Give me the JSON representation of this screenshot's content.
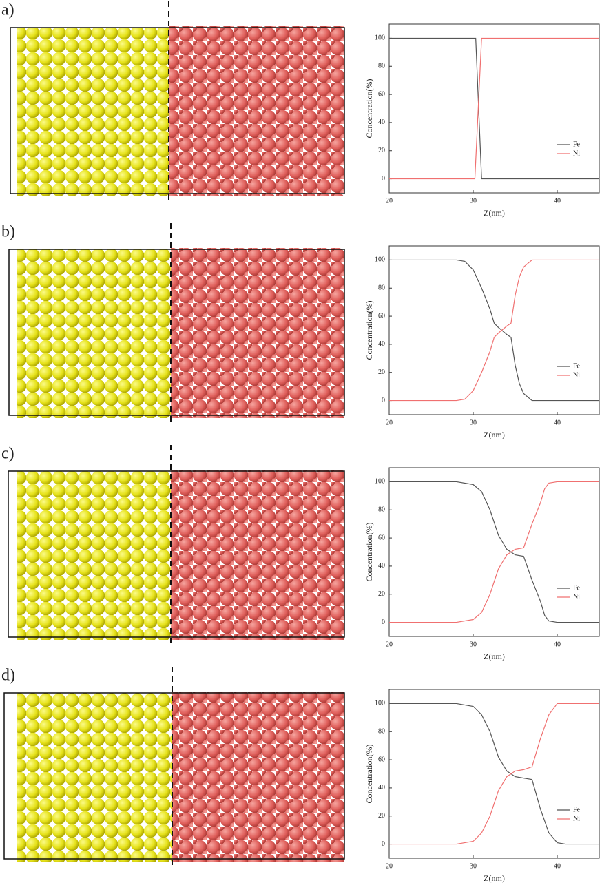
{
  "chart_data": [
    {
      "type": "line",
      "panel_label": "a)",
      "xlabel": "Z(nm)",
      "ylabel": "Concentration(%)",
      "xlim": [
        20,
        45
      ],
      "ylim": [
        -10,
        110
      ],
      "xticks": [
        20,
        30,
        40
      ],
      "yticks": [
        0,
        20,
        40,
        60,
        80,
        100
      ],
      "legend": "lower right",
      "series": [
        {
          "name": "Fe",
          "color": "#555555",
          "x": [
            20,
            30.3,
            31,
            45
          ],
          "values": [
            100,
            100,
            0,
            0
          ]
        },
        {
          "name": "Ni",
          "color": "#f07070",
          "x": [
            20,
            30.2,
            31,
            45
          ],
          "values": [
            0,
            0,
            100,
            100
          ]
        }
      ]
    },
    {
      "type": "line",
      "panel_label": "b)",
      "xlabel": "Z(nm)",
      "ylabel": "Concentration(%)",
      "xlim": [
        20,
        45
      ],
      "ylim": [
        -10,
        110
      ],
      "xticks": [
        20,
        30,
        40
      ],
      "yticks": [
        0,
        20,
        40,
        60,
        80,
        100
      ],
      "legend": "lower right",
      "series": [
        {
          "name": "Fe",
          "color": "#555555",
          "x": [
            20,
            28,
            29,
            30,
            31,
            32,
            32.5,
            33,
            34,
            34.5,
            35,
            35.5,
            36,
            37,
            45
          ],
          "values": [
            100,
            100,
            99,
            93,
            80,
            65,
            55,
            52,
            47,
            45,
            25,
            12,
            5,
            0,
            0
          ]
        },
        {
          "name": "Ni",
          "color": "#f07070",
          "x": [
            20,
            28,
            29,
            30,
            31,
            32,
            32.5,
            33,
            34,
            34.5,
            35,
            35.5,
            36,
            37,
            45
          ],
          "values": [
            0,
            0,
            1,
            7,
            20,
            35,
            45,
            48,
            53,
            55,
            75,
            88,
            95,
            100,
            100
          ]
        }
      ]
    },
    {
      "type": "line",
      "panel_label": "c)",
      "xlabel": "Z(nm)",
      "ylabel": "Concentration(%)",
      "xlim": [
        20,
        45
      ],
      "ylim": [
        -10,
        110
      ],
      "xticks": [
        20,
        30,
        40
      ],
      "yticks": [
        0,
        20,
        40,
        60,
        80,
        100
      ],
      "legend": "lower right",
      "series": [
        {
          "name": "Fe",
          "color": "#555555",
          "x": [
            20,
            28,
            30,
            31,
            32,
            33,
            34,
            35,
            36,
            37,
            38,
            38.5,
            39,
            40,
            45
          ],
          "values": [
            100,
            100,
            98,
            93,
            80,
            62,
            52,
            48,
            47,
            30,
            15,
            5,
            1,
            0,
            0
          ]
        },
        {
          "name": "Ni",
          "color": "#f07070",
          "x": [
            20,
            28,
            30,
            31,
            32,
            33,
            34,
            35,
            36,
            37,
            38,
            38.5,
            39,
            40,
            45
          ],
          "values": [
            0,
            0,
            2,
            7,
            20,
            38,
            48,
            52,
            53,
            70,
            85,
            95,
            99,
            100,
            100
          ]
        }
      ]
    },
    {
      "type": "line",
      "panel_label": "d)",
      "xlabel": "Z(nm)",
      "ylabel": "Concentration(%)",
      "xlim": [
        20,
        45
      ],
      "ylim": [
        -10,
        110
      ],
      "xticks": [
        20,
        30,
        40
      ],
      "yticks": [
        0,
        20,
        40,
        60,
        80,
        100
      ],
      "legend": "lower right",
      "series": [
        {
          "name": "Fe",
          "color": "#555555",
          "x": [
            20,
            28,
            30,
            31,
            32,
            33,
            34,
            35,
            36,
            37,
            38,
            39,
            40,
            41,
            45
          ],
          "values": [
            100,
            100,
            98,
            92,
            80,
            62,
            52,
            48,
            47,
            46,
            25,
            8,
            1,
            0,
            0
          ]
        },
        {
          "name": "Ni",
          "color": "#f07070",
          "x": [
            20,
            28,
            30,
            31,
            32,
            33,
            34,
            35,
            36,
            37,
            38,
            39,
            40,
            45
          ],
          "values": [
            0,
            0,
            2,
            8,
            20,
            38,
            48,
            52,
            53,
            55,
            75,
            92,
            100,
            100
          ]
        }
      ]
    }
  ]
}
